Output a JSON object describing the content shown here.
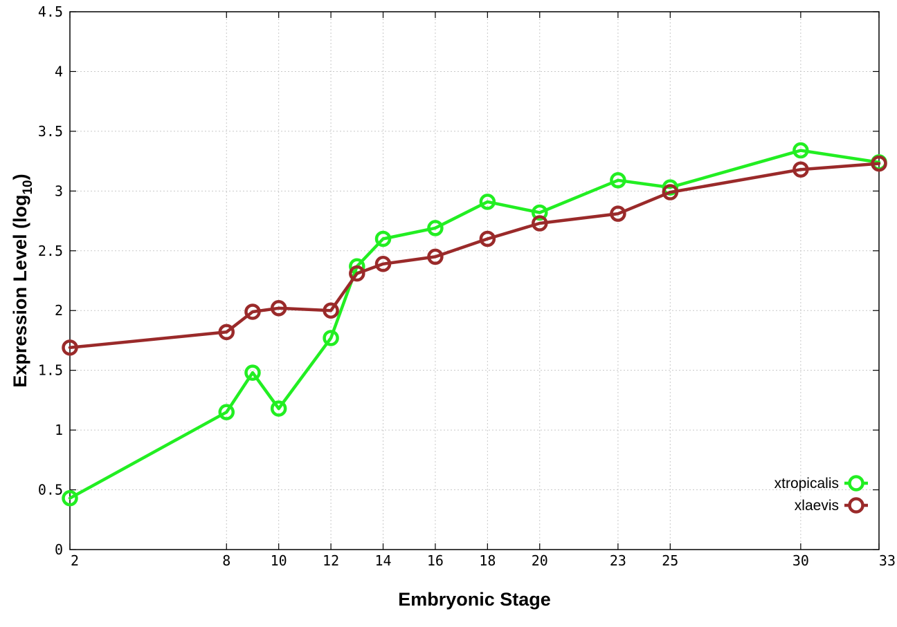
{
  "chart_data": {
    "type": "line",
    "xlabel": "Embryonic Stage",
    "ylabel_main": "Expression Level (log",
    "ylabel_sub": "10",
    "ylabel_close": ")",
    "xlim": [
      2,
      33
    ],
    "ylim": [
      0,
      4.5
    ],
    "x_ticks": [
      2,
      8,
      10,
      12,
      14,
      16,
      18,
      20,
      23,
      25,
      30,
      33
    ],
    "x_tick_labels": [
      "2",
      "8",
      "10",
      "12",
      "14",
      "16",
      "18",
      "20",
      "23",
      "25",
      "30",
      "33"
    ],
    "y_ticks": [
      0,
      0.5,
      1,
      1.5,
      2,
      2.5,
      3,
      3.5,
      4,
      4.5
    ],
    "y_tick_labels": [
      "0",
      "0.5",
      "1",
      "1.5",
      "2",
      "2.5",
      "3",
      "3.5",
      "4",
      "4.5"
    ],
    "grid": true,
    "legend_position": "bottom-right",
    "x": [
      2,
      8,
      9,
      10,
      12,
      13,
      14,
      16,
      18,
      20,
      23,
      25,
      30,
      33
    ],
    "series": [
      {
        "name": "xtropicalis",
        "color": "#22ee22",
        "values": [
          0.43,
          1.15,
          1.48,
          1.18,
          1.77,
          2.37,
          2.6,
          2.69,
          2.91,
          2.82,
          3.09,
          3.03,
          3.34,
          3.24
        ]
      },
      {
        "name": "xlaevis",
        "color": "#9a2a2a",
        "values": [
          1.69,
          1.82,
          1.99,
          2.02,
          2.0,
          2.31,
          2.39,
          2.45,
          2.6,
          2.73,
          2.81,
          2.99,
          3.18,
          3.23
        ]
      }
    ]
  }
}
